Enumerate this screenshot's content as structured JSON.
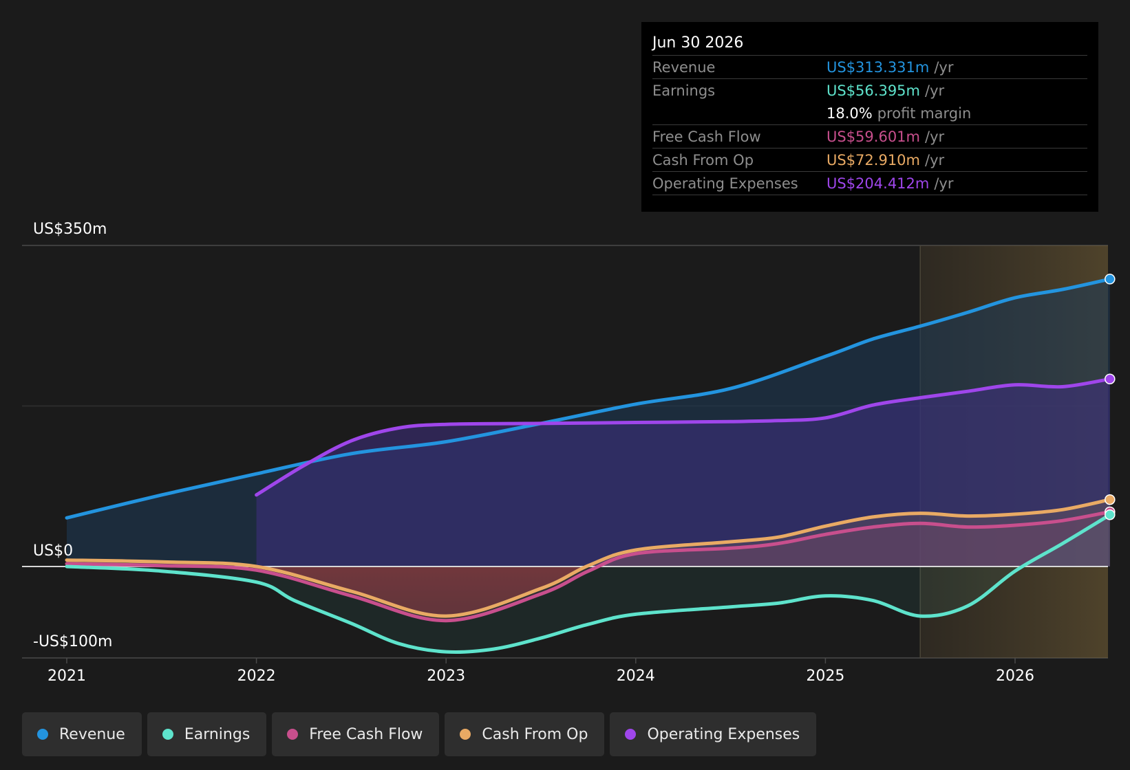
{
  "tooltip": {
    "date": "Jun 30 2026",
    "rows": [
      {
        "label": "Revenue",
        "value": "US$313.331m",
        "unit": "/yr"
      },
      {
        "label": "Earnings",
        "value": "US$56.395m",
        "unit": "/yr"
      },
      {
        "label": "Free Cash Flow",
        "value": "US$59.601m",
        "unit": "/yr"
      },
      {
        "label": "Cash From Op",
        "value": "US$72.910m",
        "unit": "/yr"
      },
      {
        "label": "Operating Expenses",
        "value": "US$204.412m",
        "unit": "/yr"
      }
    ],
    "margin_value": "18.0%",
    "margin_label": "profit margin"
  },
  "legend": [
    {
      "label": "Revenue",
      "color": "#2394df"
    },
    {
      "label": "Earnings",
      "color": "#5ee3cc"
    },
    {
      "label": "Free Cash Flow",
      "color": "#c84f8d"
    },
    {
      "label": "Cash From Op",
      "color": "#e9aa64"
    },
    {
      "label": "Operating Expenses",
      "color": "#9f46eb"
    }
  ],
  "chart_data": {
    "type": "line",
    "y_tick_labels": [
      "US$350m",
      "US$0",
      "-US$100m"
    ],
    "x_tick_labels": [
      "2021",
      "2022",
      "2023",
      "2024",
      "2025",
      "2026"
    ],
    "ylim": [
      -100,
      350
    ],
    "xlim": [
      2020.8,
      2026.5
    ],
    "forecast_start": 2025.5,
    "series": [
      {
        "name": "Revenue",
        "color": "#2394df",
        "x": [
          2021,
          2021.5,
          2022,
          2022.5,
          2023,
          2023.5,
          2024,
          2024.5,
          2025,
          2025.25,
          2025.5,
          2025.75,
          2026,
          2026.25,
          2026.5
        ],
        "y": [
          53,
          78,
          101,
          123,
          136,
          156,
          177,
          194,
          229,
          248,
          262,
          277,
          293,
          302,
          313.331
        ]
      },
      {
        "name": "Earnings",
        "color": "#5ee3cc",
        "x": [
          2021,
          2021.5,
          2022,
          2022.2,
          2022.5,
          2022.75,
          2023,
          2023.25,
          2023.5,
          2023.75,
          2024,
          2024.5,
          2024.75,
          2025,
          2025.25,
          2025.5,
          2025.75,
          2026,
          2026.25,
          2026.5
        ],
        "y": [
          0,
          -5,
          -17,
          -37,
          -62,
          -84,
          -93,
          -90,
          -78,
          -63,
          -52,
          -44,
          -40,
          -32,
          -37,
          -54,
          -43,
          -5,
          25,
          56.395
        ]
      },
      {
        "name": "Free Cash Flow",
        "color": "#c84f8d",
        "x": [
          2021,
          2021.5,
          2022,
          2022.5,
          2023,
          2023.5,
          2023.75,
          2024,
          2024.5,
          2024.75,
          2025,
          2025.25,
          2025.5,
          2025.75,
          2026,
          2026.25,
          2026.5
        ],
        "y": [
          3,
          1,
          -4,
          -32,
          -59,
          -30,
          -5,
          14,
          20,
          25,
          35,
          43,
          47,
          43,
          45,
          50,
          59.601
        ]
      },
      {
        "name": "Cash From Op",
        "color": "#e9aa64",
        "x": [
          2021,
          2021.5,
          2022,
          2022.5,
          2023,
          2023.5,
          2023.75,
          2024,
          2024.5,
          2024.75,
          2025,
          2025.25,
          2025.5,
          2025.75,
          2026,
          2026.25,
          2026.5
        ],
        "y": [
          7,
          5,
          0,
          -27,
          -54,
          -24,
          1,
          18,
          27,
          32,
          44,
          54,
          58,
          55,
          57,
          62,
          72.91
        ]
      },
      {
        "name": "Operating Expenses",
        "color": "#9f46eb",
        "x": [
          2022,
          2022.25,
          2022.5,
          2022.75,
          2023,
          2023.5,
          2024,
          2024.5,
          2024.75,
          2025,
          2025.25,
          2025.5,
          2025.75,
          2026,
          2026.25,
          2026.5
        ],
        "y": [
          78,
          110,
          137,
          151,
          155,
          156,
          157,
          158,
          159,
          162,
          176,
          184,
          191,
          198,
          196,
          204.412
        ]
      }
    ]
  }
}
